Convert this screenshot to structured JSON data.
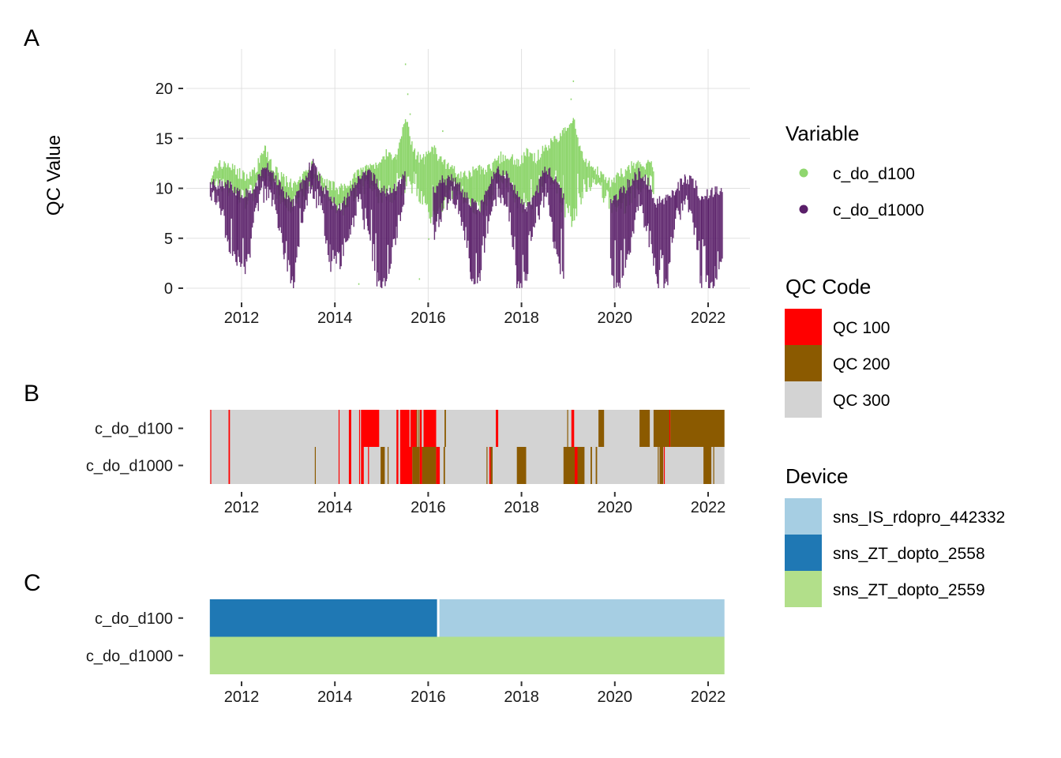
{
  "colors": {
    "c_do_d100": "#8fd66e",
    "c_do_d1000": "#5a1f69",
    "qc_100": "#ff0000",
    "qc_200": "#8b5a00",
    "qc_300": "#d3d3d3",
    "sns_IS_rdopro_442332": "#a6cee3",
    "sns_ZT_dopto_2558": "#1f78b4",
    "sns_ZT_dopto_2559": "#b2df8a",
    "grid": "#e0e0e0"
  },
  "chart_data": [
    {
      "panel": "A",
      "type": "scatter",
      "title": "",
      "xlabel": "",
      "ylabel": "QC Value",
      "xlim": [
        2011.3,
        2023.1
      ],
      "ylim": [
        -1,
        23
      ],
      "x_ticks": [
        "2012",
        "2014",
        "2016",
        "2018",
        "2020",
        "2022"
      ],
      "x_tick_values": [
        2012,
        2014,
        2016,
        2018,
        2020,
        2022
      ],
      "y_ticks": [
        "0",
        "5",
        "10",
        "15",
        "20"
      ],
      "y_tick_values": [
        0,
        5,
        10,
        15,
        20
      ],
      "grid": true,
      "legend": {
        "title": "Variable",
        "position": "right",
        "entries": [
          "c_do_d100",
          "c_do_d1000"
        ]
      },
      "series": [
        {
          "name": "c_do_d100",
          "note": "dense time series shown as approximate range envelope per time step",
          "x": [
            2011.32,
            2011.5,
            2011.7,
            2011.9,
            2012.1,
            2012.3,
            2012.5,
            2012.7,
            2012.9,
            2013.1,
            2013.3,
            2013.5,
            2013.7,
            2013.9,
            2014.1,
            2014.3,
            2014.5,
            2014.7,
            2014.9,
            2015.1,
            2015.3,
            2015.5,
            2015.7,
            2015.9,
            2016.1,
            2016.3,
            2016.5,
            2016.7,
            2016.9,
            2017.1,
            2017.3,
            2017.5,
            2017.7,
            2017.9,
            2018.1,
            2018.3,
            2018.5,
            2018.7,
            2018.9,
            2019.1,
            2019.3,
            2019.5,
            2019.7,
            2019.9,
            2020.1,
            2020.3,
            2020.5,
            2020.7,
            2020.82
          ],
          "upper": [
            11.2,
            12.3,
            12.5,
            11.5,
            11.2,
            12.0,
            13.8,
            11.8,
            10.8,
            10.2,
            11.0,
            12.3,
            11.0,
            10.3,
            9.8,
            10.8,
            11.5,
            12.0,
            12.5,
            13.5,
            12.8,
            17.0,
            13.5,
            12.8,
            14.0,
            12.5,
            11.8,
            11.5,
            11.5,
            12.0,
            12.0,
            13.0,
            13.5,
            12.5,
            13.5,
            13.0,
            14.2,
            15.0,
            15.5,
            17.0,
            13.0,
            12.0,
            11.5,
            10.5,
            11.5,
            12.0,
            12.5,
            12.3,
            12.2
          ],
          "lower": [
            9.5,
            9.8,
            9.5,
            8.8,
            8.5,
            9.5,
            10.5,
            9.8,
            8.5,
            7.8,
            8.5,
            10.5,
            9.5,
            8.3,
            7.5,
            8.2,
            9.5,
            10.3,
            9.0,
            8.5,
            9.5,
            10.0,
            9.5,
            8.5,
            6.5,
            7.5,
            9.5,
            9.0,
            8.0,
            7.5,
            8.5,
            10.5,
            10.0,
            8.5,
            7.5,
            8.5,
            10.5,
            9.5,
            7.5,
            6.5,
            9.5,
            10.0,
            9.5,
            8.0,
            7.5,
            8.5,
            9.5,
            10.0,
            10.0
          ],
          "outliers": [
            [
              2015.5,
              22.5
            ],
            [
              2015.55,
              19.5
            ],
            [
              2015.6,
              17.5
            ],
            [
              2016.3,
              15.8
            ],
            [
              2019.05,
              19.0
            ],
            [
              2019.1,
              20.8
            ],
            [
              2016.0,
              5.0
            ],
            [
              2015.8,
              1.0
            ],
            [
              2014.5,
              0.5
            ]
          ]
        },
        {
          "name": "c_do_d1000",
          "note": "dense time series shown as approximate range envelope per time step",
          "x": [
            2011.32,
            2011.5,
            2011.7,
            2011.9,
            2012.1,
            2012.3,
            2012.5,
            2012.7,
            2012.9,
            2013.1,
            2013.3,
            2013.5,
            2013.7,
            2013.9,
            2014.1,
            2014.3,
            2014.5,
            2014.7,
            2014.9,
            2015.1,
            2015.3,
            2015.5,
            2015.7,
            2015.9,
            2016.1,
            2016.3,
            2016.5,
            2016.7,
            2016.9,
            2017.1,
            2017.3,
            2017.5,
            2017.7,
            2017.9,
            2018.1,
            2018.3,
            2018.5,
            2018.7,
            2018.9,
            2019.1,
            2019.3,
            2019.5,
            2019.7,
            2019.9,
            2020.1,
            2020.3,
            2020.5,
            2020.7,
            2020.9,
            2021.1,
            2021.3,
            2021.5,
            2021.7,
            2021.85,
            2022.0,
            2022.15,
            2022.3
          ],
          "upper": [
            10.2,
            10.5,
            10.5,
            9.5,
            9.5,
            10.5,
            12.5,
            11.0,
            9.5,
            8.5,
            10.5,
            12.8,
            10.5,
            9.0,
            8.0,
            9.5,
            10.8,
            11.8,
            10.5,
            9.5,
            10.0,
            12.0,
            null,
            null,
            9.8,
            10.8,
            11.0,
            10.0,
            8.5,
            8.0,
            10.5,
            12.0,
            11.0,
            9.5,
            8.0,
            9.5,
            12.0,
            11.0,
            9.0,
            null,
            null,
            null,
            null,
            8.5,
            9.5,
            10.5,
            11.5,
            10.5,
            8.5,
            9.0,
            10.0,
            11.0,
            10.5,
            9.0,
            9.5,
            9.8,
            9.8
          ],
          "lower": [
            8.0,
            8.5,
            4.0,
            2.5,
            1.5,
            7.5,
            9.5,
            8.0,
            3.0,
            0.0,
            6.5,
            9.5,
            7.5,
            2.0,
            2.5,
            5.0,
            8.5,
            5.0,
            0.5,
            0.0,
            5.0,
            9.0,
            null,
            null,
            5.0,
            7.5,
            9.0,
            6.0,
            0.5,
            1.0,
            7.0,
            9.5,
            7.5,
            0.0,
            1.0,
            6.5,
            9.0,
            3.5,
            0.0,
            null,
            null,
            null,
            null,
            0.0,
            0.0,
            3.5,
            8.5,
            5.0,
            0.0,
            0.0,
            6.5,
            8.5,
            5.0,
            0.0,
            0.0,
            0.0,
            3.0
          ]
        }
      ]
    },
    {
      "panel": "B",
      "type": "heatmap",
      "title": "",
      "xlim": [
        2011.3,
        2023.1
      ],
      "x_ticks": [
        "2012",
        "2014",
        "2016",
        "2018",
        "2020",
        "2022"
      ],
      "x_tick_values": [
        2012,
        2014,
        2016,
        2018,
        2020,
        2022
      ],
      "y_categories": [
        "c_do_d100",
        "c_do_d1000"
      ],
      "legend": {
        "title": "QC Code",
        "position": "right",
        "entries": [
          "QC 100",
          "QC 200",
          "QC 300"
        ]
      },
      "x_range": [
        2011.32,
        2022.35
      ],
      "default_code": "QC 300",
      "segments": {
        "c_do_d100": [
          {
            "start": 2011.33,
            "end": 2011.35,
            "code": "QC 100"
          },
          {
            "start": 2011.72,
            "end": 2011.75,
            "code": "QC 100"
          },
          {
            "start": 2014.08,
            "end": 2014.1,
            "code": "QC 100"
          },
          {
            "start": 2014.3,
            "end": 2014.35,
            "code": "QC 100"
          },
          {
            "start": 2014.52,
            "end": 2014.53,
            "code": "QC 100"
          },
          {
            "start": 2014.56,
            "end": 2014.95,
            "code": "QC 100"
          },
          {
            "start": 2015.32,
            "end": 2015.36,
            "code": "QC 100"
          },
          {
            "start": 2015.4,
            "end": 2015.6,
            "code": "QC 100"
          },
          {
            "start": 2015.62,
            "end": 2015.75,
            "code": "QC 100"
          },
          {
            "start": 2015.75,
            "end": 2015.76,
            "code": "QC 200"
          },
          {
            "start": 2015.79,
            "end": 2015.8,
            "code": "QC 200"
          },
          {
            "start": 2015.82,
            "end": 2015.86,
            "code": "QC 100"
          },
          {
            "start": 2015.9,
            "end": 2016.17,
            "code": "QC 100"
          },
          {
            "start": 2016.35,
            "end": 2016.38,
            "code": "QC 200"
          },
          {
            "start": 2017.45,
            "end": 2017.5,
            "code": "QC 100"
          },
          {
            "start": 2018.98,
            "end": 2018.99,
            "code": "QC 200"
          },
          {
            "start": 2019.07,
            "end": 2019.13,
            "code": "QC 100"
          },
          {
            "start": 2019.65,
            "end": 2019.77,
            "code": "QC 200"
          },
          {
            "start": 2020.53,
            "end": 2020.75,
            "code": "QC 200"
          },
          {
            "start": 2020.83,
            "end": 2021.17,
            "code": "QC 200"
          },
          {
            "start": 2021.17,
            "end": 2021.19,
            "code": "QC 100"
          },
          {
            "start": 2021.19,
            "end": 2022.35,
            "code": "QC 200"
          }
        ],
        "c_do_d1000": [
          {
            "start": 2011.33,
            "end": 2011.35,
            "code": "QC 100"
          },
          {
            "start": 2011.72,
            "end": 2011.75,
            "code": "QC 100"
          },
          {
            "start": 2013.57,
            "end": 2013.59,
            "code": "QC 200"
          },
          {
            "start": 2014.08,
            "end": 2014.1,
            "code": "QC 100"
          },
          {
            "start": 2014.3,
            "end": 2014.35,
            "code": "QC 100"
          },
          {
            "start": 2014.52,
            "end": 2014.53,
            "code": "QC 100"
          },
          {
            "start": 2014.56,
            "end": 2014.62,
            "code": "QC 100"
          },
          {
            "start": 2014.71,
            "end": 2014.72,
            "code": "QC 100"
          },
          {
            "start": 2014.98,
            "end": 2015.07,
            "code": "QC 200"
          },
          {
            "start": 2015.13,
            "end": 2015.15,
            "code": "QC 200"
          },
          {
            "start": 2015.32,
            "end": 2015.36,
            "code": "QC 100"
          },
          {
            "start": 2015.4,
            "end": 2015.66,
            "code": "QC 100"
          },
          {
            "start": 2015.66,
            "end": 2015.82,
            "code": "QC 200"
          },
          {
            "start": 2015.82,
            "end": 2015.87,
            "code": "QC 100"
          },
          {
            "start": 2015.87,
            "end": 2016.17,
            "code": "QC 200"
          },
          {
            "start": 2016.17,
            "end": 2016.25,
            "code": "QC 100"
          },
          {
            "start": 2016.33,
            "end": 2016.36,
            "code": "QC 200"
          },
          {
            "start": 2017.25,
            "end": 2017.26,
            "code": "QC 200"
          },
          {
            "start": 2017.31,
            "end": 2017.34,
            "code": "QC 100"
          },
          {
            "start": 2017.34,
            "end": 2017.38,
            "code": "QC 200"
          },
          {
            "start": 2017.9,
            "end": 2018.1,
            "code": "QC 200"
          },
          {
            "start": 2018.9,
            "end": 2019.14,
            "code": "QC 200"
          },
          {
            "start": 2019.14,
            "end": 2019.2,
            "code": "QC 100"
          },
          {
            "start": 2019.2,
            "end": 2019.35,
            "code": "QC 200"
          },
          {
            "start": 2019.48,
            "end": 2019.51,
            "code": "QC 200"
          },
          {
            "start": 2019.59,
            "end": 2019.62,
            "code": "QC 200"
          },
          {
            "start": 2020.92,
            "end": 2020.94,
            "code": "QC 200"
          },
          {
            "start": 2020.96,
            "end": 2021.04,
            "code": "QC 200"
          },
          {
            "start": 2021.05,
            "end": 2021.07,
            "code": "QC 100"
          },
          {
            "start": 2021.9,
            "end": 2022.07,
            "code": "QC 200"
          },
          {
            "start": 2022.11,
            "end": 2022.13,
            "code": "QC 200"
          }
        ]
      }
    },
    {
      "panel": "C",
      "type": "heatmap",
      "title": "",
      "xlim": [
        2011.3,
        2023.1
      ],
      "x_ticks": [
        "2012",
        "2014",
        "2016",
        "2018",
        "2020",
        "2022"
      ],
      "x_tick_values": [
        2012,
        2014,
        2016,
        2018,
        2020,
        2022
      ],
      "y_categories": [
        "c_do_d100",
        "c_do_d1000"
      ],
      "legend": {
        "title": "Device",
        "position": "right",
        "entries": [
          "sns_IS_rdopro_442332",
          "sns_ZT_dopto_2558",
          "sns_ZT_dopto_2559"
        ]
      },
      "segments": {
        "c_do_d100": [
          {
            "start": 2011.32,
            "end": 2016.19,
            "device": "sns_ZT_dopto_2558"
          },
          {
            "start": 2016.24,
            "end": 2022.35,
            "device": "sns_IS_rdopro_442332"
          }
        ],
        "c_do_d1000": [
          {
            "start": 2011.32,
            "end": 2022.35,
            "device": "sns_ZT_dopto_2559"
          }
        ]
      }
    }
  ],
  "labels": {
    "panel_a": "A",
    "panel_b": "B",
    "panel_c": "C",
    "y_axis_title": "QC Value",
    "legend_variable_title": "Variable",
    "legend_qc_title": "QC Code",
    "legend_device_title": "Device",
    "legend_variable_items": [
      "c_do_d100",
      "c_do_d1000"
    ],
    "legend_qc_items": [
      "QC 100",
      "QC 200",
      "QC 300"
    ],
    "legend_device_items": [
      "sns_IS_rdopro_442332",
      "sns_ZT_dopto_2558",
      "sns_ZT_dopto_2559"
    ]
  }
}
